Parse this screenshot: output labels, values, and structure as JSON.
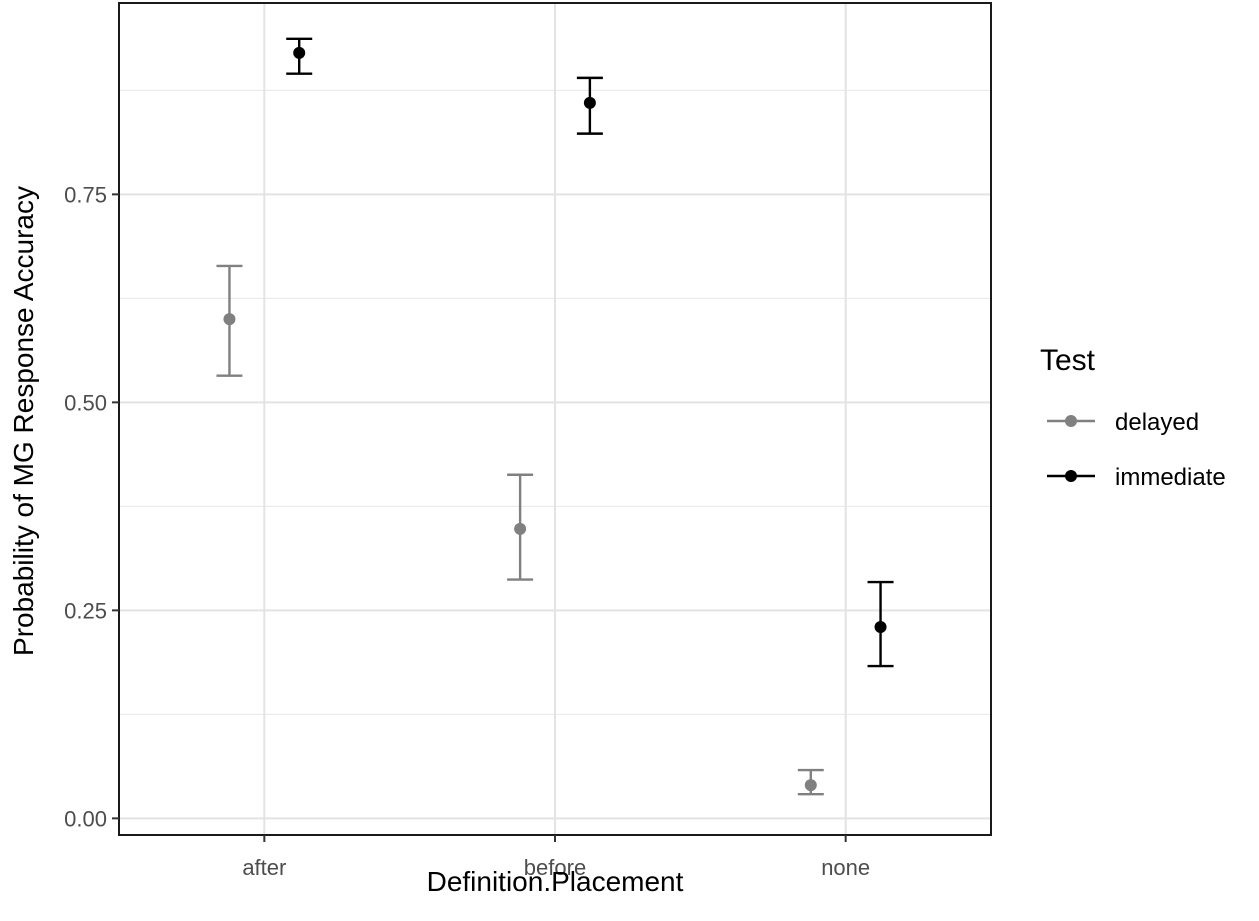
{
  "chart_data": {
    "type": "scatter",
    "title": "",
    "xlabel": "Definition.Placement",
    "ylabel": "Probability of MG Response Accuracy",
    "categories": [
      "after",
      "before",
      "none"
    ],
    "ylim": [
      -0.02,
      0.98
    ],
    "yticks": [
      0.0,
      0.25,
      0.5,
      0.75
    ],
    "ytick_labels": [
      "0.00",
      "0.25",
      "0.50",
      "0.75"
    ],
    "grid": true,
    "legend": {
      "title": "Test",
      "placement": "right"
    },
    "series": [
      {
        "name": "delayed",
        "color": "#808080",
        "values": [
          0.6,
          0.348,
          0.04
        ],
        "lower": [
          0.532,
          0.287,
          0.029
        ],
        "upper": [
          0.664,
          0.413,
          0.058
        ]
      },
      {
        "name": "immediate",
        "color": "#000000",
        "values": [
          0.92,
          0.86,
          0.23
        ],
        "lower": [
          0.895,
          0.823,
          0.183
        ],
        "upper": [
          0.937,
          0.89,
          0.284
        ]
      }
    ]
  }
}
